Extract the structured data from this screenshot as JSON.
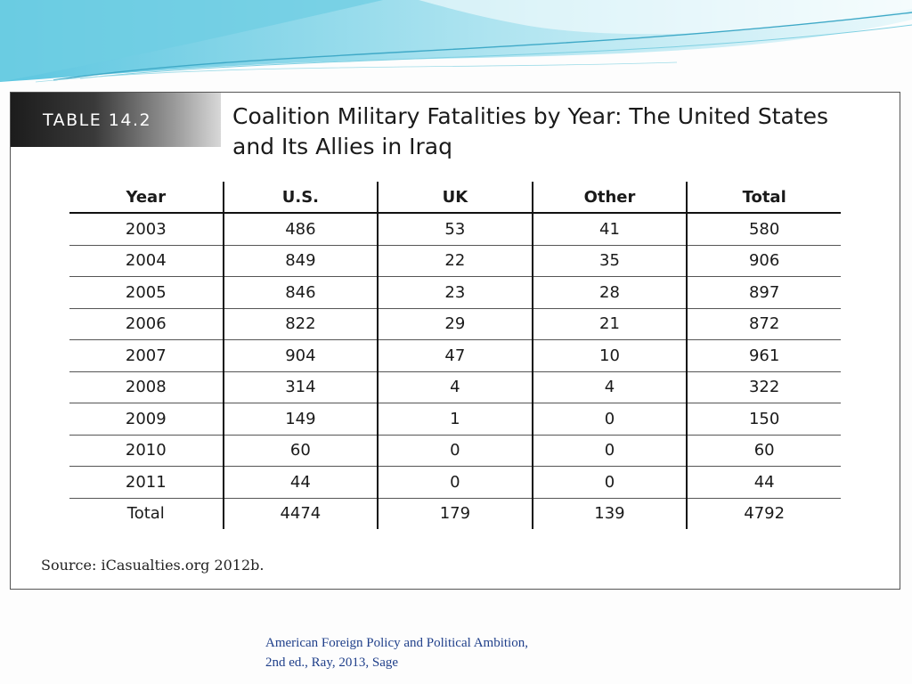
{
  "slide": {
    "table_label": "TABLE 14.2",
    "table_title": "Coalition Military Fatalities by Year: The United States and Its Allies in Iraq",
    "source": "Source: iCasualties.org 2012b.",
    "citation_line1": "American Foreign Policy and Political Ambition,",
    "citation_line2": "2nd ed., Ray, 2013, Sage",
    "colors": {
      "wave_light": "#bfe9f2",
      "wave_dark": "#4fbfdc",
      "citation": "#1f3f8a"
    }
  },
  "table": {
    "headers": [
      "Year",
      "U.S.",
      "UK",
      "Other",
      "Total"
    ],
    "rows": [
      [
        "2003",
        "486",
        "53",
        "41",
        "580"
      ],
      [
        "2004",
        "849",
        "22",
        "35",
        "906"
      ],
      [
        "2005",
        "846",
        "23",
        "28",
        "897"
      ],
      [
        "2006",
        "822",
        "29",
        "21",
        "872"
      ],
      [
        "2007",
        "904",
        "47",
        "10",
        "961"
      ],
      [
        "2008",
        "314",
        "4",
        "4",
        "322"
      ],
      [
        "2009",
        "149",
        "1",
        "0",
        "150"
      ],
      [
        "2010",
        "60",
        "0",
        "0",
        "60"
      ],
      [
        "2011",
        "44",
        "0",
        "0",
        "44"
      ],
      [
        "Total",
        "4474",
        "179",
        "139",
        "4792"
      ]
    ]
  }
}
